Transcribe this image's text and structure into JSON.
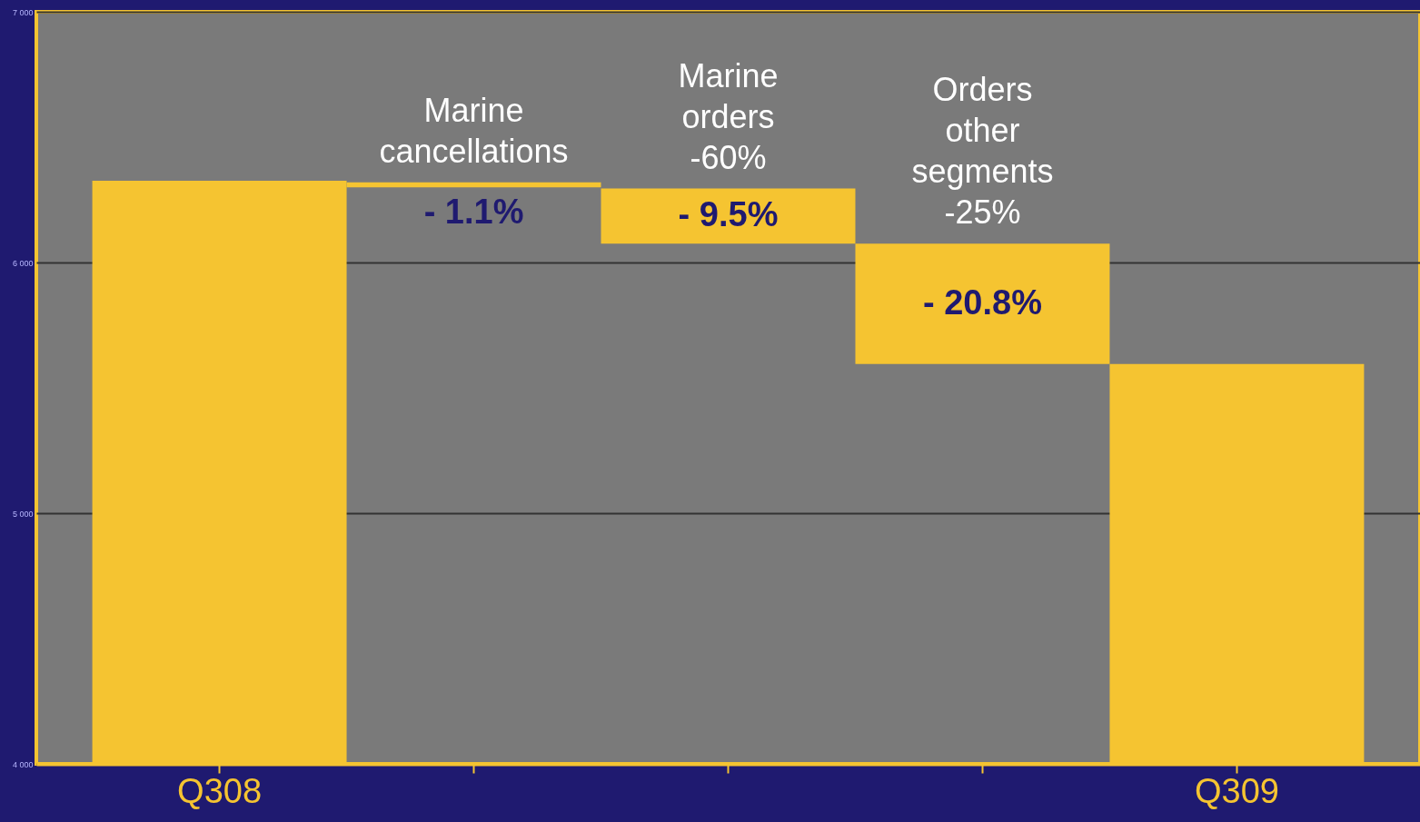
{
  "chart_data": {
    "type": "bar",
    "categories": [
      "Q308",
      null,
      null,
      null,
      "Q309"
    ],
    "base": [
      4000,
      6320,
      6295,
      6075,
      4000
    ],
    "values": [
      2326,
      -20,
      -220,
      -480,
      1595
    ],
    "colors": [
      "#f5c431",
      "#f5c431",
      "#f5c431",
      "#f5c431",
      "#f5c431"
    ],
    "annotations": [
      "Marine cancellations",
      "Marine orders -60%",
      "Orders other segments -25%",
      "- 1.1%",
      "- 9.5%",
      "- 20.8%"
    ],
    "ylim": [
      4000,
      7000
    ],
    "yticks": [
      {
        "value": 4000,
        "label": "4 000"
      },
      {
        "value": 5000,
        "label": "5 000"
      },
      {
        "value": 6000,
        "label": "6 000"
      },
      {
        "value": 7000,
        "label": "7 000"
      }
    ],
    "grid": "y"
  }
}
